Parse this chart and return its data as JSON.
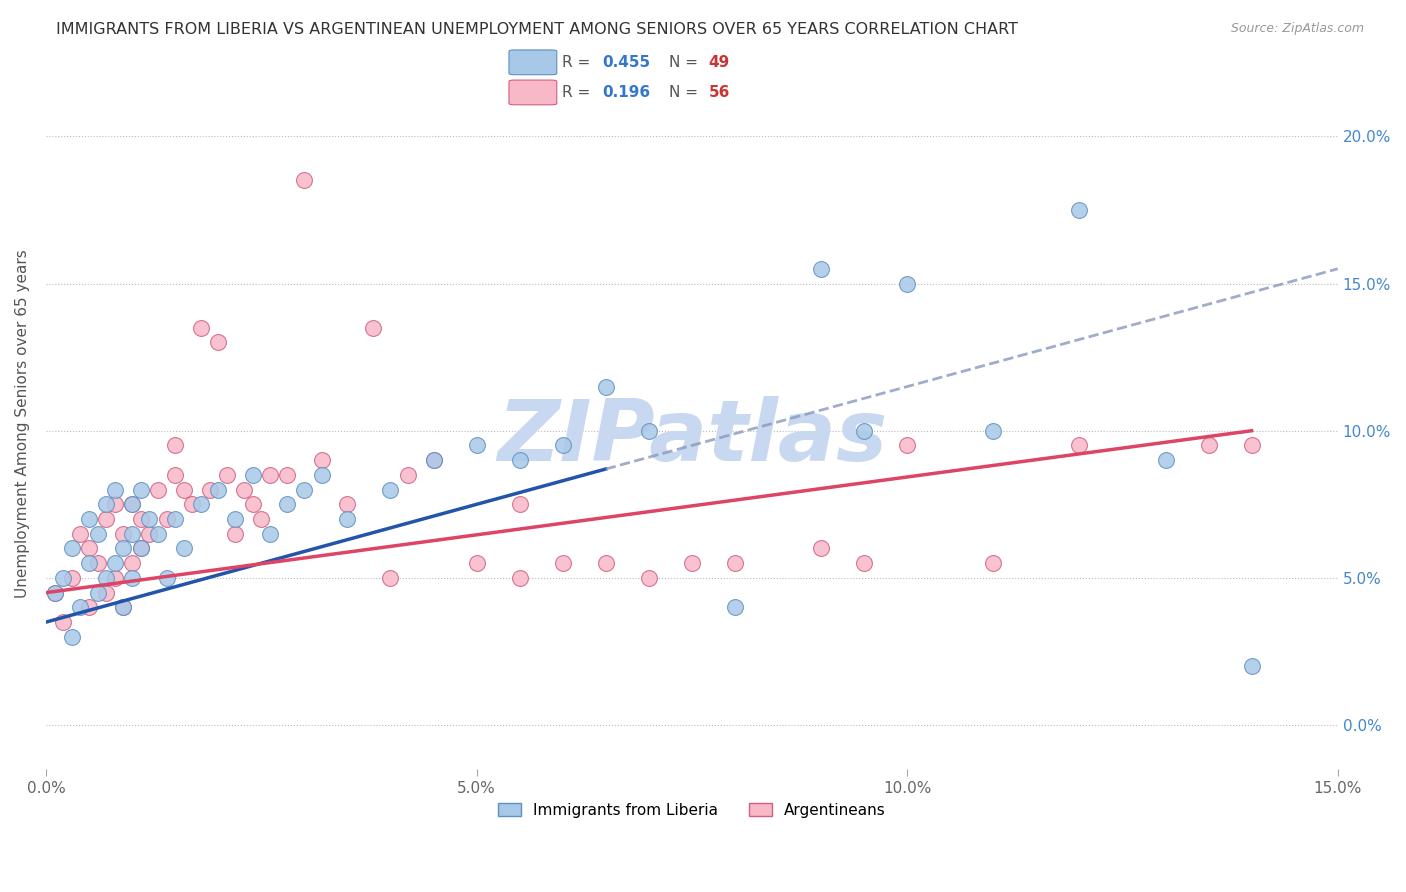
{
  "title": "IMMIGRANTS FROM LIBERIA VS ARGENTINEAN UNEMPLOYMENT AMONG SENIORS OVER 65 YEARS CORRELATION CHART",
  "source": "Source: ZipAtlas.com",
  "ylabel": "Unemployment Among Seniors over 65 years",
  "xlabel_vals": [
    0.0,
    5.0,
    10.0,
    15.0
  ],
  "ylabel_vals": [
    0.0,
    5.0,
    10.0,
    15.0,
    20.0
  ],
  "xlim": [
    0.0,
    15.0
  ],
  "ylim": [
    -1.5,
    22.0
  ],
  "r_blue": 0.455,
  "n_blue": 49,
  "r_pink": 0.196,
  "n_pink": 56,
  "blue_color": "#a8c8e8",
  "pink_color": "#f8b8c8",
  "blue_edge_color": "#6090c0",
  "pink_edge_color": "#d06080",
  "blue_line_color": "#2255aa",
  "pink_line_color": "#dd4466",
  "watermark": "ZIPatlas",
  "watermark_color": "#c8d8f0",
  "legend_r_color": "#3377cc",
  "legend_n_color": "#cc3333",
  "blue_scatter_x": [
    0.1,
    0.2,
    0.3,
    0.3,
    0.4,
    0.5,
    0.5,
    0.6,
    0.6,
    0.7,
    0.7,
    0.8,
    0.8,
    0.9,
    0.9,
    1.0,
    1.0,
    1.0,
    1.1,
    1.1,
    1.2,
    1.3,
    1.4,
    1.5,
    1.6,
    1.8,
    2.0,
    2.2,
    2.4,
    2.6,
    2.8,
    3.0,
    3.2,
    3.5,
    4.0,
    4.5,
    5.0,
    5.5,
    6.0,
    6.5,
    7.0,
    8.0,
    9.0,
    9.5,
    10.0,
    11.0,
    12.0,
    13.0,
    14.0
  ],
  "blue_scatter_y": [
    4.5,
    5.0,
    3.0,
    6.0,
    4.0,
    5.5,
    7.0,
    4.5,
    6.5,
    5.0,
    7.5,
    5.5,
    8.0,
    4.0,
    6.0,
    5.0,
    6.5,
    7.5,
    6.0,
    8.0,
    7.0,
    6.5,
    5.0,
    7.0,
    6.0,
    7.5,
    8.0,
    7.0,
    8.5,
    6.5,
    7.5,
    8.0,
    8.5,
    7.0,
    8.0,
    9.0,
    9.5,
    9.0,
    9.5,
    11.5,
    10.0,
    4.0,
    15.5,
    10.0,
    15.0,
    10.0,
    17.5,
    9.0,
    2.0
  ],
  "pink_scatter_x": [
    0.1,
    0.2,
    0.3,
    0.4,
    0.5,
    0.5,
    0.6,
    0.7,
    0.7,
    0.8,
    0.8,
    0.9,
    0.9,
    1.0,
    1.0,
    1.1,
    1.1,
    1.2,
    1.3,
    1.4,
    1.5,
    1.5,
    1.6,
    1.7,
    1.8,
    1.9,
    2.0,
    2.1,
    2.2,
    2.3,
    2.4,
    2.5,
    2.6,
    2.8,
    3.0,
    3.2,
    3.5,
    3.8,
    4.0,
    4.2,
    4.5,
    5.0,
    5.5,
    5.5,
    6.0,
    6.5,
    7.0,
    7.5,
    8.0,
    9.0,
    9.5,
    10.0,
    11.0,
    12.0,
    13.5,
    14.0
  ],
  "pink_scatter_y": [
    4.5,
    3.5,
    5.0,
    6.5,
    4.0,
    6.0,
    5.5,
    7.0,
    4.5,
    7.5,
    5.0,
    6.5,
    4.0,
    7.5,
    5.5,
    7.0,
    6.0,
    6.5,
    8.0,
    7.0,
    9.5,
    8.5,
    8.0,
    7.5,
    13.5,
    8.0,
    13.0,
    8.5,
    6.5,
    8.0,
    7.5,
    7.0,
    8.5,
    8.5,
    18.5,
    9.0,
    7.5,
    13.5,
    5.0,
    8.5,
    9.0,
    5.5,
    7.5,
    5.0,
    5.5,
    5.5,
    5.0,
    5.5,
    5.5,
    6.0,
    5.5,
    9.5,
    5.5,
    9.5,
    9.5,
    9.5
  ],
  "blue_line_x0": 0.0,
  "blue_line_y0": 3.5,
  "blue_line_x1": 15.0,
  "blue_line_y1": 15.5,
  "blue_solid_end": 6.5,
  "pink_line_x0": 0.0,
  "pink_line_y0": 4.5,
  "pink_line_x1": 14.0,
  "pink_line_y1": 10.0
}
